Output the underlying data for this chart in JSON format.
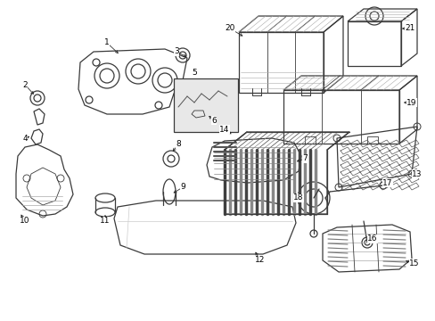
{
  "bg_color": "#ffffff",
  "line_color": "#3a3a3a",
  "fig_width": 4.89,
  "fig_height": 3.6,
  "dpi": 100,
  "label_fontsize": 6.5
}
